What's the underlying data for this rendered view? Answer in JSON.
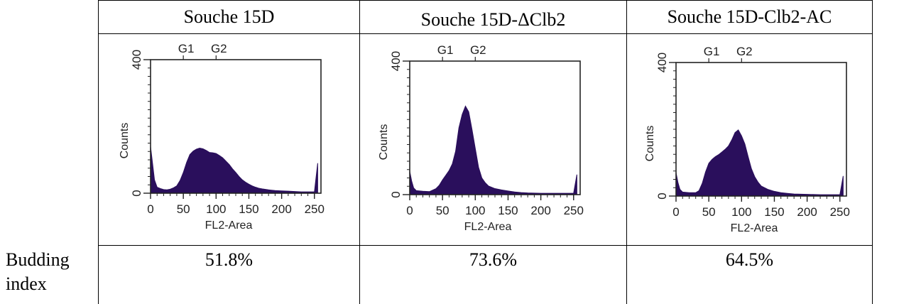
{
  "table": {
    "headers": [
      "Souche 15D",
      "Souche 15D-ΔClb2",
      "Souche 15D-Clb2-AC"
    ],
    "row_label": "Budding index",
    "row_label_lines": [
      "Budding",
      "index"
    ],
    "values": [
      "51.8%",
      "73.6%",
      "64.5%"
    ]
  },
  "fill_color": "#2a0f5c",
  "chart_data": [
    {
      "type": "area",
      "title": "",
      "xlabel": "FL2-Area",
      "ylabel": "Counts",
      "xlim": [
        0,
        260
      ],
      "ylim": [
        0,
        400
      ],
      "xticks": [
        "0",
        "50",
        "100",
        "150",
        "200",
        "250"
      ],
      "yticks": [
        "0",
        "400"
      ],
      "markers": [
        {
          "label": "G1",
          "x": 50
        },
        {
          "label": "G2",
          "x": 100
        }
      ],
      "x": [
        0,
        3,
        6,
        10,
        15,
        20,
        25,
        30,
        35,
        40,
        45,
        50,
        55,
        60,
        65,
        70,
        75,
        80,
        85,
        90,
        95,
        100,
        105,
        110,
        115,
        120,
        125,
        130,
        135,
        140,
        145,
        150,
        155,
        160,
        165,
        170,
        180,
        190,
        200,
        210,
        220,
        230,
        240,
        250,
        255
      ],
      "y": [
        140,
        90,
        40,
        18,
        14,
        11,
        10,
        12,
        16,
        22,
        38,
        62,
        92,
        116,
        126,
        132,
        135,
        133,
        128,
        122,
        121,
        119,
        113,
        106,
        96,
        86,
        73,
        62,
        50,
        40,
        33,
        27,
        22,
        18,
        15,
        13,
        10,
        8,
        7,
        6,
        5,
        4,
        4,
        4,
        90
      ]
    },
    {
      "type": "area",
      "title": "",
      "xlabel": "FL2-Area",
      "ylabel": "Counts",
      "xlim": [
        0,
        260
      ],
      "ylim": [
        0,
        400
      ],
      "xticks": [
        "0",
        "50",
        "100",
        "150",
        "200",
        "250"
      ],
      "yticks": [
        "0",
        "400"
      ],
      "markers": [
        {
          "label": "G1",
          "x": 50
        },
        {
          "label": "G2",
          "x": 100
        }
      ],
      "x": [
        0,
        3,
        6,
        10,
        20,
        30,
        40,
        45,
        50,
        55,
        60,
        65,
        70,
        75,
        80,
        85,
        90,
        95,
        100,
        105,
        110,
        115,
        120,
        130,
        140,
        150,
        160,
        170,
        180,
        200,
        220,
        240,
        250,
        255
      ],
      "y": [
        70,
        40,
        20,
        12,
        10,
        9,
        18,
        28,
        44,
        58,
        72,
        92,
        130,
        200,
        240,
        265,
        248,
        195,
        138,
        82,
        50,
        36,
        26,
        18,
        14,
        11,
        8,
        6,
        5,
        4,
        4,
        4,
        4,
        60
      ]
    },
    {
      "type": "area",
      "title": "",
      "xlabel": "FL2-Area",
      "ylabel": "Counts",
      "xlim": [
        0,
        260
      ],
      "ylim": [
        0,
        400
      ],
      "xticks": [
        "0",
        "50",
        "100",
        "150",
        "200",
        "250"
      ],
      "yticks": [
        "0",
        "400"
      ],
      "markers": [
        {
          "label": "G1",
          "x": 50
        },
        {
          "label": "G2",
          "x": 100
        }
      ],
      "x": [
        0,
        3,
        6,
        10,
        20,
        30,
        35,
        40,
        45,
        50,
        55,
        60,
        65,
        70,
        75,
        80,
        85,
        90,
        95,
        100,
        105,
        110,
        115,
        120,
        125,
        130,
        140,
        150,
        160,
        170,
        180,
        200,
        220,
        240,
        250,
        255
      ],
      "y": [
        70,
        40,
        20,
        12,
        10,
        10,
        16,
        38,
        72,
        98,
        110,
        118,
        124,
        132,
        140,
        150,
        168,
        190,
        198,
        180,
        156,
        118,
        82,
        58,
        42,
        30,
        20,
        14,
        10,
        8,
        6,
        5,
        4,
        4,
        4,
        60
      ]
    }
  ]
}
